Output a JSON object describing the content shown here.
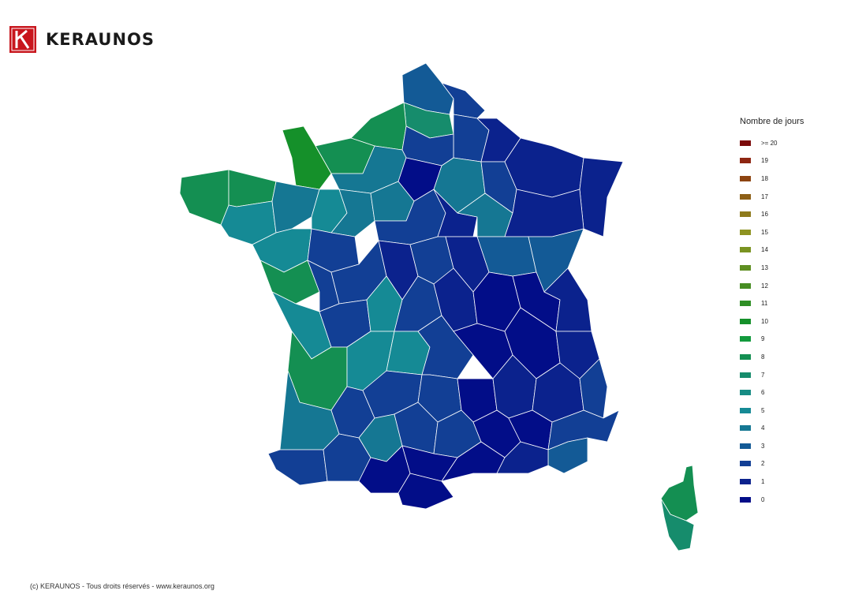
{
  "brand": {
    "name": "KERAUNOS",
    "logo_icon": "keraunos-k-logo-icon",
    "logo_color": "#c8161d"
  },
  "legend": {
    "title": "Nombre de jours",
    "items": [
      {
        "label": ">= 20",
        "color": "#7b0a0a"
      },
      {
        "label": "19",
        "color": "#8e2612"
      },
      {
        "label": "18",
        "color": "#8d4411"
      },
      {
        "label": "17",
        "color": "#8d5f16"
      },
      {
        "label": "16",
        "color": "#8e7a1c"
      },
      {
        "label": "15",
        "color": "#8e9321"
      },
      {
        "label": "14",
        "color": "#7a9321"
      },
      {
        "label": "13",
        "color": "#5f8f21"
      },
      {
        "label": "12",
        "color": "#478d23"
      },
      {
        "label": "11",
        "color": "#2f8f25"
      },
      {
        "label": "10",
        "color": "#15902a"
      },
      {
        "label": "9",
        "color": "#139a3d"
      },
      {
        "label": "8",
        "color": "#148f52"
      },
      {
        "label": "7",
        "color": "#168c6c"
      },
      {
        "label": "6",
        "color": "#178c84"
      },
      {
        "label": "5",
        "color": "#158a95"
      },
      {
        "label": "4",
        "color": "#157793"
      },
      {
        "label": "3",
        "color": "#135a96"
      },
      {
        "label": "2",
        "color": "#123f95"
      },
      {
        "label": "1",
        "color": "#0b228d"
      },
      {
        "label": "0",
        "color": "#020d88"
      }
    ]
  },
  "credit": "(c) KERAUNOS - Tous droits réservés - www.keraunos.org"
}
